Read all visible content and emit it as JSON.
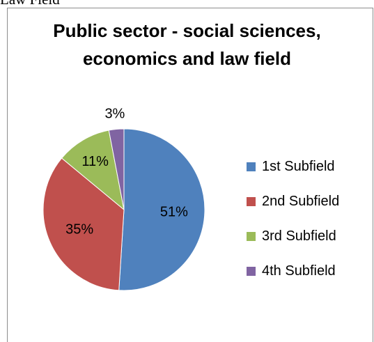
{
  "page": {
    "caption": "Law Field"
  },
  "chart_data": {
    "type": "pie",
    "title_lines": [
      "Public sector - social sciences,",
      "economics and law field"
    ],
    "categories": [
      "1st Subfield",
      "2nd Subfield",
      "3rd Subfield",
      "4th Subfield"
    ],
    "values": [
      51,
      35,
      11,
      3
    ],
    "labels": [
      "51%",
      "35%",
      "11%",
      "3%"
    ],
    "colors": [
      "#4f81bd",
      "#c0504d",
      "#9bbb59",
      "#8064a2"
    ],
    "start_angle": "12 o'clock, clockwise",
    "legend_position": "right"
  }
}
